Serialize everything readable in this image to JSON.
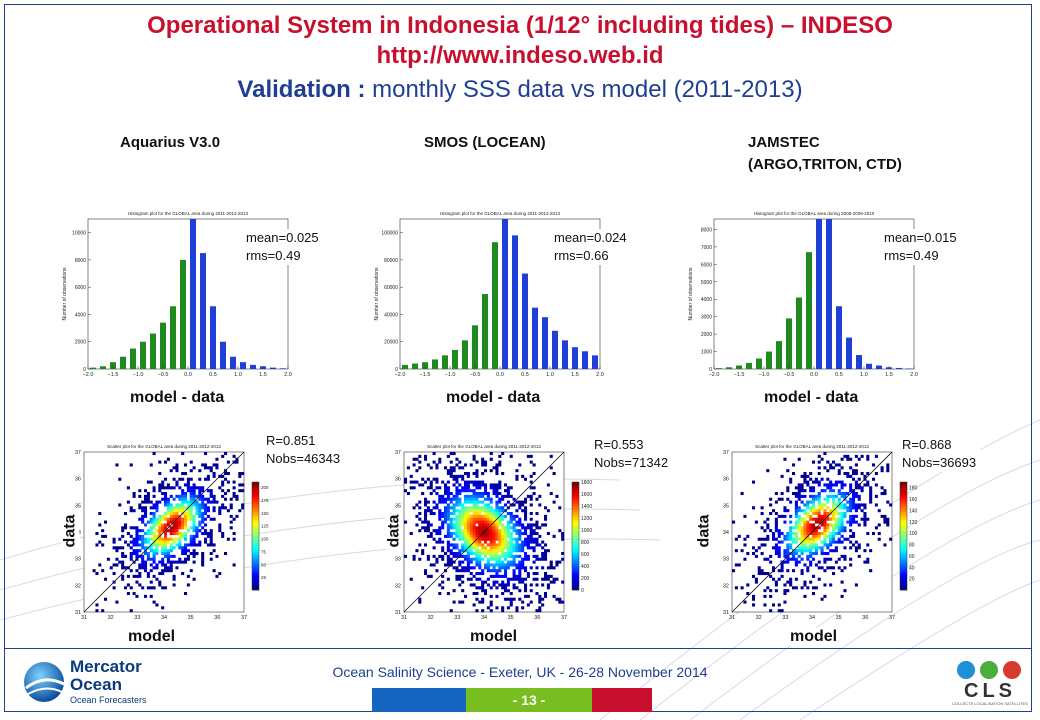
{
  "title": {
    "line1": "Operational System in Indonesia (1/12° including tides) – INDESO",
    "line2": "http://www.indeso.web.id",
    "line3_bold": "Validation : ",
    "line3_normal": "monthly SSS data vs model (2011-2013)"
  },
  "columns": [
    {
      "heading": "Aquarius V3.0",
      "heading2": ""
    },
    {
      "heading": "SMOS (LOCEAN)",
      "heading2": ""
    },
    {
      "heading": "JAMSTEC",
      "heading2": "(ARGO,TRITON, CTD)"
    }
  ],
  "labels": {
    "xhist": "model - data",
    "xscatter": "model",
    "yscatter": "data"
  },
  "colors": {
    "green": "#1f8a1f",
    "blue": "#1f3fd6",
    "title_red": "#c8102e",
    "title_blue": "#1f3f8f"
  },
  "chart_data": [
    {
      "type": "bar",
      "title": "Histogram plot for the GLOBAL area during 2011-2012-2013",
      "ylabel": "Number of observations",
      "xlabel": "model - data",
      "stats": [
        "mean=0.025",
        "rms=0.49"
      ],
      "xlim": [
        -2.0,
        2.0
      ],
      "ylim": [
        0,
        11000
      ],
      "xticks": [
        "−2.0",
        "−1.5",
        "−1.0",
        "−0.5",
        "0.0",
        "0.5",
        "1.0",
        "1.5",
        "2.0"
      ],
      "yticks": [
        "0",
        "2000",
        "4000",
        "6000",
        "8000",
        "10000"
      ],
      "ytick_values": [
        0,
        2000,
        4000,
        6000,
        8000,
        10000
      ],
      "bin_width": 0.2,
      "bins": [
        {
          "x": -1.9,
          "y": 100,
          "c": "green"
        },
        {
          "x": -1.7,
          "y": 200,
          "c": "green"
        },
        {
          "x": -1.5,
          "y": 500,
          "c": "green"
        },
        {
          "x": -1.3,
          "y": 900,
          "c": "green"
        },
        {
          "x": -1.1,
          "y": 1500,
          "c": "green"
        },
        {
          "x": -0.9,
          "y": 2000,
          "c": "green"
        },
        {
          "x": -0.7,
          "y": 2600,
          "c": "green"
        },
        {
          "x": -0.5,
          "y": 3400,
          "c": "green"
        },
        {
          "x": -0.3,
          "y": 4600,
          "c": "green"
        },
        {
          "x": -0.1,
          "y": 8000,
          "c": "green"
        },
        {
          "x": 0.1,
          "y": 11000,
          "c": "blue"
        },
        {
          "x": 0.3,
          "y": 8500,
          "c": "blue"
        },
        {
          "x": 0.5,
          "y": 4600,
          "c": "blue"
        },
        {
          "x": 0.7,
          "y": 2000,
          "c": "blue"
        },
        {
          "x": 0.9,
          "y": 900,
          "c": "blue"
        },
        {
          "x": 1.1,
          "y": 500,
          "c": "blue"
        },
        {
          "x": 1.3,
          "y": 300,
          "c": "blue"
        },
        {
          "x": 1.5,
          "y": 200,
          "c": "blue"
        },
        {
          "x": 1.7,
          "y": 100,
          "c": "blue"
        },
        {
          "x": 1.9,
          "y": 50,
          "c": "blue"
        }
      ]
    },
    {
      "type": "bar",
      "title": "Histogram plot for the GLOBAL area during 2011-2012-2013",
      "ylabel": "Number of observations",
      "xlabel": "model - data",
      "stats": [
        "mean=0.024",
        "rms=0.66"
      ],
      "xlim": [
        -2.0,
        2.0
      ],
      "ylim": [
        0,
        110000
      ],
      "xticks": [
        "−2.0",
        "−1.5",
        "−1.0",
        "−0.5",
        "0.0",
        "0.5",
        "1.0",
        "1.5",
        "2.0"
      ],
      "yticks": [
        "0",
        "20000",
        "40000",
        "60000",
        "80000",
        "100000"
      ],
      "ytick_values": [
        0,
        20000,
        40000,
        60000,
        80000,
        100000
      ],
      "bin_width": 0.2,
      "bins": [
        {
          "x": -1.9,
          "y": 3000,
          "c": "green"
        },
        {
          "x": -1.7,
          "y": 4000,
          "c": "green"
        },
        {
          "x": -1.5,
          "y": 5000,
          "c": "green"
        },
        {
          "x": -1.3,
          "y": 7000,
          "c": "green"
        },
        {
          "x": -1.1,
          "y": 10000,
          "c": "green"
        },
        {
          "x": -0.9,
          "y": 14000,
          "c": "green"
        },
        {
          "x": -0.7,
          "y": 21000,
          "c": "green"
        },
        {
          "x": -0.5,
          "y": 32000,
          "c": "green"
        },
        {
          "x": -0.3,
          "y": 55000,
          "c": "green"
        },
        {
          "x": -0.1,
          "y": 93000,
          "c": "green"
        },
        {
          "x": 0.1,
          "y": 110000,
          "c": "blue"
        },
        {
          "x": 0.3,
          "y": 98000,
          "c": "blue"
        },
        {
          "x": 0.5,
          "y": 70000,
          "c": "blue"
        },
        {
          "x": 0.7,
          "y": 45000,
          "c": "blue"
        },
        {
          "x": 0.9,
          "y": 38000,
          "c": "blue"
        },
        {
          "x": 1.1,
          "y": 28000,
          "c": "blue"
        },
        {
          "x": 1.3,
          "y": 21000,
          "c": "blue"
        },
        {
          "x": 1.5,
          "y": 16000,
          "c": "blue"
        },
        {
          "x": 1.7,
          "y": 13000,
          "c": "blue"
        },
        {
          "x": 1.9,
          "y": 10000,
          "c": "blue"
        }
      ]
    },
    {
      "type": "bar",
      "title": "Histogram plot for the GLOBAL area during 2008-2009-2010",
      "ylabel": "Number of observations",
      "xlabel": "model - data",
      "stats": [
        "mean=0.015",
        "rms=0.49"
      ],
      "xlim": [
        -2.0,
        2.0
      ],
      "ylim": [
        0,
        8600
      ],
      "xticks": [
        "−2.0",
        "−1.5",
        "−1.0",
        "−0.5",
        "0.0",
        "0.5",
        "1.0",
        "1.5",
        "2.0"
      ],
      "yticks": [
        "0",
        "1000",
        "2000",
        "3000",
        "4000",
        "5000",
        "6000",
        "7000",
        "8000"
      ],
      "ytick_values": [
        0,
        1000,
        2000,
        3000,
        4000,
        5000,
        6000,
        7000,
        8000
      ],
      "bin_width": 0.2,
      "bins": [
        {
          "x": -1.9,
          "y": 50,
          "c": "green"
        },
        {
          "x": -1.7,
          "y": 100,
          "c": "green"
        },
        {
          "x": -1.5,
          "y": 200,
          "c": "green"
        },
        {
          "x": -1.3,
          "y": 350,
          "c": "green"
        },
        {
          "x": -1.1,
          "y": 600,
          "c": "green"
        },
        {
          "x": -0.9,
          "y": 1000,
          "c": "green"
        },
        {
          "x": -0.7,
          "y": 1600,
          "c": "green"
        },
        {
          "x": -0.5,
          "y": 2900,
          "c": "green"
        },
        {
          "x": -0.3,
          "y": 4100,
          "c": "green"
        },
        {
          "x": -0.1,
          "y": 6700,
          "c": "green"
        },
        {
          "x": 0.1,
          "y": 8600,
          "c": "blue"
        },
        {
          "x": 0.3,
          "y": 8600,
          "c": "blue"
        },
        {
          "x": 0.5,
          "y": 3600,
          "c": "blue"
        },
        {
          "x": 0.7,
          "y": 1800,
          "c": "blue"
        },
        {
          "x": 0.9,
          "y": 800,
          "c": "blue"
        },
        {
          "x": 1.1,
          "y": 300,
          "c": "blue"
        },
        {
          "x": 1.3,
          "y": 200,
          "c": "blue"
        },
        {
          "x": 1.5,
          "y": 100,
          "c": "blue"
        },
        {
          "x": 1.7,
          "y": 60,
          "c": "blue"
        },
        {
          "x": 1.9,
          "y": 30,
          "c": "blue"
        }
      ]
    },
    {
      "type": "scatter",
      "title": "Scatter plot for the GLOBAL area during 2011-2012-2013",
      "xlabel": "model",
      "ylabel": "data",
      "stats": [
        "R=0.851",
        "Nobs=46343"
      ],
      "xlim": [
        31,
        37
      ],
      "ylim": [
        31,
        37
      ],
      "xticks": [
        "31",
        "32",
        "33",
        "34",
        "35",
        "36",
        "37"
      ],
      "yticks": [
        "31",
        "32",
        "33",
        "34",
        "35",
        "36",
        "37"
      ],
      "colorbar_ticks": [
        "25",
        "50",
        "75",
        "100",
        "125",
        "150",
        "175",
        "200"
      ],
      "colorbar_max": 210,
      "center": [
        34.3,
        34.2
      ],
      "spread": [
        0.95,
        0.55
      ],
      "scatter_density": 0.9
    },
    {
      "type": "scatter",
      "title": "Scatter plot for the GLOBAL area during 2011-2012-2013",
      "xlabel": "model",
      "ylabel": "data",
      "stats": [
        "R=0.553",
        "Nobs=71342"
      ],
      "xlim": [
        31,
        37
      ],
      "ylim": [
        31,
        37
      ],
      "xticks": [
        "31",
        "32",
        "33",
        "34",
        "35",
        "36",
        "37"
      ],
      "yticks": [
        "31",
        "32",
        "33",
        "34",
        "35",
        "36",
        "37"
      ],
      "colorbar_ticks": [
        "0",
        "200",
        "400",
        "600",
        "800",
        "1000",
        "1200",
        "1400",
        "1600",
        "1800"
      ],
      "colorbar_max": 1800,
      "center": [
        34.0,
        34.0
      ],
      "spread": [
        0.75,
        1.1
      ],
      "scatter_density": 1.0
    },
    {
      "type": "scatter",
      "title": "Scatter plot for the GLOBAL area during 2011-2012-2013",
      "xlabel": "model",
      "ylabel": "data",
      "stats": [
        "R=0.868",
        "Nobs=36693"
      ],
      "xlim": [
        31,
        37
      ],
      "ylim": [
        31,
        37
      ],
      "xticks": [
        "31",
        "32",
        "33",
        "34",
        "35",
        "36",
        "37"
      ],
      "yticks": [
        "31",
        "32",
        "33",
        "34",
        "35",
        "36",
        "37"
      ],
      "colorbar_ticks": [
        "20",
        "40",
        "60",
        "80",
        "100",
        "120",
        "140",
        "160",
        "180"
      ],
      "colorbar_max": 190,
      "center": [
        34.2,
        34.3
      ],
      "spread": [
        1.0,
        0.6
      ],
      "scatter_density": 0.85
    }
  ],
  "footer": {
    "text": "Ocean Salinity Science - Exeter, UK - 26-28 November 2014",
    "page": "- 13 -",
    "logo_left_title": "Mercator",
    "logo_left_title2": "Ocean",
    "logo_left_sub": "Ocean Forecasters",
    "logo_right": "CLS",
    "logo_right_sub": "COLLECTE LOCALISATION SATELLITES"
  }
}
